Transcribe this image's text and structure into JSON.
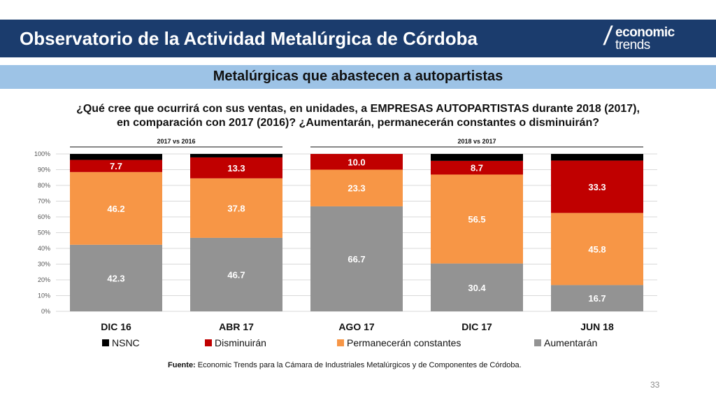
{
  "header": {
    "title": "Observatorio de la Actividad Metalúrgica de Córdoba",
    "logo_line1": "economic",
    "logo_line2": "trends"
  },
  "subtitle": "Metalúrgicas que abastecen a autopartistas",
  "question_line1": "¿Qué cree que ocurrirá con sus ventas, en unidades, a EMPRESAS AUTOPARTISTAS durante 2018 (2017),",
  "question_line2": "en comparación con 2017 (2016)? ¿Aumentarán, permanecerán constantes o disminuirán?",
  "source_label": "Fuente:",
  "source_text": " Economic Trends para la Cámara de Industriales Metalúrgicos y de Componentes de Córdoba.",
  "page_number": "33",
  "colors": {
    "header_bg": "#1b3c6d",
    "subbar_bg": "#9dc3e6",
    "aumentaran": "#939393",
    "permaneceran": "#f79646",
    "disminuiran": "#c00000",
    "nsnc": "#000000"
  },
  "chart_data": {
    "type": "bar",
    "stacked": true,
    "categories": [
      "DIC 16",
      "ABR 17",
      "AGO 17",
      "DIC 17",
      "JUN 18"
    ],
    "groups": [
      {
        "label": "2017 vs 2016",
        "categories": [
          "DIC 16",
          "ABR 17"
        ]
      },
      {
        "label": "2018 vs 2017",
        "categories": [
          "AGO 17",
          "DIC 17",
          "JUN 18"
        ]
      }
    ],
    "series": [
      {
        "name": "Aumentarán",
        "color": "#939393",
        "values": [
          42.3,
          46.7,
          66.7,
          30.4,
          16.7
        ]
      },
      {
        "name": "Permanecerán constantes",
        "color": "#f79646",
        "values": [
          46.2,
          37.8,
          23.3,
          56.5,
          45.8
        ]
      },
      {
        "name": "Disminuirán",
        "color": "#c00000",
        "values": [
          7.7,
          13.3,
          10.0,
          8.7,
          33.3
        ]
      },
      {
        "name": "NSNC",
        "color": "#000000",
        "values": [
          3.8,
          2.2,
          0.0,
          4.4,
          4.2
        ]
      }
    ],
    "labels": [
      [
        "42.3",
        "46.7",
        "66.7",
        "30.4",
        "16.7"
      ],
      [
        "46.2",
        "37.8",
        "23.3",
        "56.5",
        "45.8"
      ],
      [
        "7.7",
        "13.3",
        "10.0",
        "8.7",
        "33.3"
      ],
      [
        "",
        "",
        "",
        "",
        ""
      ]
    ],
    "legend_order": [
      "NSNC",
      "Disminuirán",
      "Permanecerán constantes",
      "Aumentarán"
    ],
    "ylim": [
      0,
      100
    ],
    "yticks": [
      "0%",
      "10%",
      "20%",
      "30%",
      "40%",
      "50%",
      "60%",
      "70%",
      "80%",
      "90%",
      "100%"
    ],
    "grid": true,
    "legend_position": "bottom"
  }
}
